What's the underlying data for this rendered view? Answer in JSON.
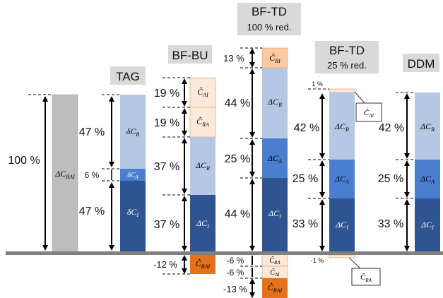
{
  "baseline_color": "#808080",
  "colors": {
    "gray": "#bdbdbd",
    "dark_blue": "#2f5591",
    "mid_blue": "#4a7fd0",
    "light_blue": "#b4c8e4",
    "peach_light": "#fde9d9",
    "peach": "#fbcaa3",
    "orange": "#e4721b"
  },
  "columns": [
    {
      "title": "",
      "subtitle": "",
      "segments": [
        {
          "label": "ΔC_RAI",
          "percent": "100 %",
          "value": 100,
          "color": "gray"
        }
      ]
    },
    {
      "title": "TAG",
      "subtitle": "",
      "segments": [
        {
          "label": "δC_I",
          "percent": "47 %",
          "value": 47,
          "color": "dark_blue"
        },
        {
          "label": "δC_A",
          "percent": "6 %",
          "value": 6,
          "color": "mid_blue"
        },
        {
          "label": "δC_R",
          "percent": "47 %",
          "value": 47,
          "color": "light_blue"
        }
      ]
    },
    {
      "title": "BF-BU",
      "subtitle": "",
      "segments": [
        {
          "label": "ΔC_I",
          "percent": "37 %",
          "value": 37,
          "color": "dark_blue"
        },
        {
          "label": "ΔC_R",
          "percent": "37 %",
          "value": 37,
          "color": "light_blue"
        },
        {
          "label": "Ĉ_RA",
          "percent": "19 %",
          "value": 19,
          "color": "peach_light"
        },
        {
          "label": "Ĉ_AI",
          "percent": "19 %",
          "value": 19,
          "color": "peach_light"
        },
        {
          "label": "Ĉ_RAI",
          "percent": "-12 %",
          "value": -12,
          "color": "orange"
        }
      ]
    },
    {
      "title": "BF-TD",
      "subtitle": "100 % red.",
      "segments": [
        {
          "label": "ΔC_I",
          "percent": "44 %",
          "value": 44,
          "color": "dark_blue"
        },
        {
          "label": "ΔC_A",
          "percent": "25 %",
          "value": 25,
          "color": "mid_blue"
        },
        {
          "label": "ΔC_R",
          "percent": "44 %",
          "value": 44,
          "color": "light_blue"
        },
        {
          "label": "Ĉ_RI",
          "percent": "13 %",
          "value": 13,
          "color": "peach"
        },
        {
          "label": "Ĉ_RA",
          "percent": "-6 %",
          "value": -6,
          "color": "peach_light"
        },
        {
          "label": "Ĉ_AI",
          "percent": "-6 %",
          "value": -6,
          "color": "peach_light"
        },
        {
          "label": "Ĉ_RAI",
          "percent": "-13 %",
          "value": -13,
          "color": "orange"
        }
      ]
    },
    {
      "title": "BF-TD",
      "subtitle": "25 % red.",
      "segments": [
        {
          "label": "ΔC_I",
          "percent": "33 %",
          "value": 33,
          "color": "dark_blue"
        },
        {
          "label": "ΔC_A",
          "percent": "25 %",
          "value": 25,
          "color": "mid_blue"
        },
        {
          "label": "ΔC_R",
          "percent": "42 %",
          "value": 42,
          "color": "light_blue"
        },
        {
          "label": "Ĉ_AI",
          "percent": "1 %",
          "value": 1,
          "color": "peach_light"
        },
        {
          "label": "Ĉ_RA",
          "percent": "-1 %",
          "value": -1,
          "color": "peach_light"
        }
      ]
    },
    {
      "title": "DDM",
      "subtitle": "",
      "segments": [
        {
          "label": "ΔC_I",
          "percent": "33 %",
          "value": 33,
          "color": "dark_blue"
        },
        {
          "label": "ΔC_A",
          "percent": "25 %",
          "value": 25,
          "color": "mid_blue"
        },
        {
          "label": "ΔC_R",
          "percent": "42 %",
          "value": 42,
          "color": "light_blue"
        }
      ]
    }
  ]
}
